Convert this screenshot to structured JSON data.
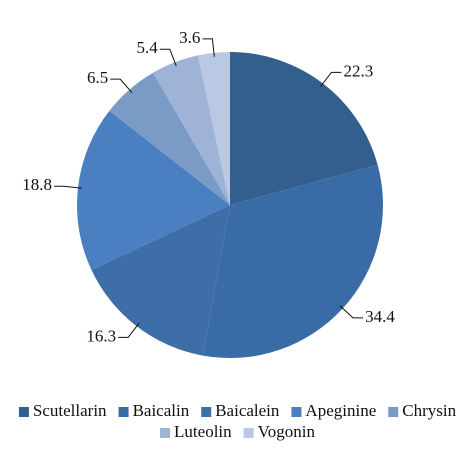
{
  "chart_data": {
    "type": "pie",
    "categories": [
      "Scutellarin",
      "Baicalin",
      "Baicalein",
      "Apeginine",
      "Chrysin",
      "Luteolin",
      "Vogonin"
    ],
    "values": [
      22.3,
      34.4,
      16.3,
      18.8,
      6.5,
      5.4,
      3.6
    ],
    "colors": [
      "#335f8e",
      "#396ca6",
      "#3d6ea8",
      "#4a80c2",
      "#7b9bc7",
      "#9eb3d6",
      "#bac9e3"
    ],
    "legend": "bottom"
  }
}
